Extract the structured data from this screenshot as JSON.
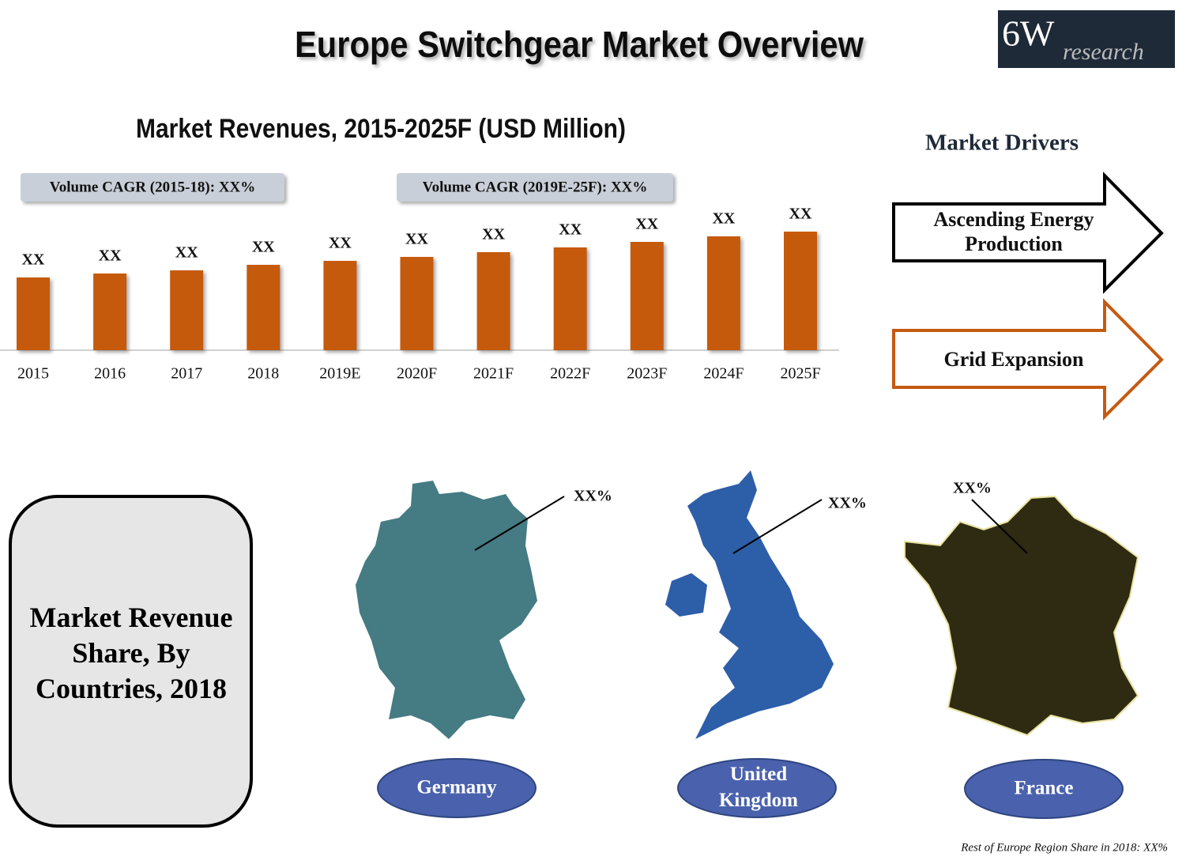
{
  "title": "Europe Switchgear Market Overview",
  "logo": {
    "main": "6W",
    "sub": "research"
  },
  "chart_data": {
    "type": "bar",
    "title": "Market Revenues, 2015-2025F (USD Million)",
    "annotations": [
      "Volume CAGR (2015-18): XX%",
      "Volume CAGR (2019E-25F): XX%"
    ],
    "categories": [
      "2015",
      "2016",
      "2017",
      "2018",
      "2019E",
      "2020F",
      "2021F",
      "2022F",
      "2023F",
      "2024F",
      "2025F"
    ],
    "values": [
      92,
      97,
      101,
      108,
      113,
      118,
      124,
      130,
      137,
      144,
      150
    ],
    "value_labels": [
      "XX",
      "XX",
      "XX",
      "XX",
      "XX",
      "XX",
      "XX",
      "XX",
      "XX",
      "XX",
      "XX"
    ],
    "color": "#c55a11"
  },
  "drivers": {
    "title": "Market Drivers",
    "items": [
      "Ascending Energy Production",
      "Grid Expansion"
    ]
  },
  "countries": {
    "title": "Market Revenue Share, By Countries, 2018",
    "items": [
      {
        "name": "Germany",
        "share": "XX%"
      },
      {
        "name": "United Kingdom",
        "share": "XX%"
      },
      {
        "name": "France",
        "share": "XX%"
      }
    ]
  },
  "footnote": "Rest of Europe Region Share in 2018: XX%"
}
